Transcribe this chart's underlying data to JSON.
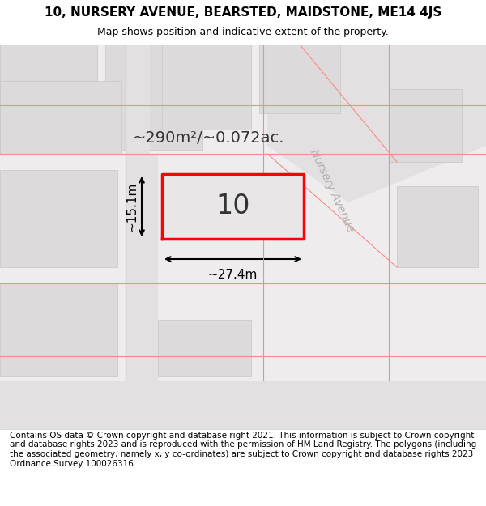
{
  "title_line1": "10, NURSERY AVENUE, BEARSTED, MAIDSTONE, ME14 4JS",
  "title_line2": "Map shows position and indicative extent of the property.",
  "footer_text": "Contains OS data © Crown copyright and database right 2021. This information is subject to Crown copyright and database rights 2023 and is reproduced with the permission of HM Land Registry. The polygons (including the associated geometry, namely x, y co-ordinates) are subject to Crown copyright and database rights 2023 Ordnance Survey 100026316.",
  "area_label": "~290m²/~0.072ac.",
  "number_label": "10",
  "dim_width": "~27.4m",
  "dim_height": "~15.1m",
  "street_label": "Nursery Avenue",
  "bg_color": "#f0eeee",
  "map_bg": "#f0eeee",
  "building_fill": "#e8e8e8",
  "building_stroke": "#cccccc",
  "road_color": "#d0d0d0",
  "property_stroke": "#ff0000",
  "property_fill": "#e8e8e8",
  "dim_color": "#000000",
  "street_label_color": "#aaaaaa",
  "title_fontsize": 11,
  "subtitle_fontsize": 9,
  "footer_fontsize": 7.5,
  "area_fontsize": 14,
  "number_fontsize": 24,
  "dim_fontsize": 11,
  "street_fontsize": 10,
  "header_bg": "#ffffff",
  "footer_bg": "#ffffff"
}
